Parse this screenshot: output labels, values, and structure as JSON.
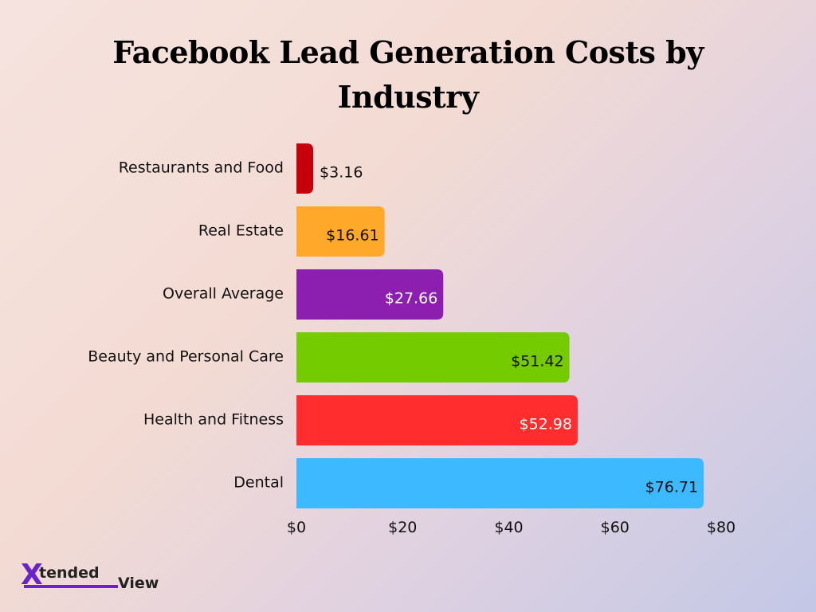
{
  "colors": {
    "Restaurants and Food": "#c6000b",
    "Real Estate": "#ffa82a",
    "Overall Average": "#8c1fb0",
    "Beauty and Personal Care": "#74cc00",
    "Health and Fitness": "#ff2d2d",
    "Dental": "#3db9ff"
  },
  "chart_data": {
    "type": "bar",
    "orientation": "horizontal",
    "title": "Facebook Lead Generation Costs by Industry",
    "categories": [
      "Restaurants and Food",
      "Real Estate",
      "Overall Average",
      "Beauty and Personal Care",
      "Health and Fitness",
      "Dental"
    ],
    "values": [
      3.16,
      16.61,
      27.66,
      51.42,
      52.98,
      76.71
    ],
    "value_labels": [
      "$3.16",
      "$16.61",
      "$27.66",
      "$51.42",
      "$52.98",
      "$76.71"
    ],
    "xlim": [
      0,
      80
    ],
    "xticks": [
      0,
      20,
      40,
      60,
      80
    ],
    "xtick_labels": [
      "$0",
      "$20",
      "$40",
      "$60",
      "$80"
    ],
    "xlabel": "",
    "ylabel": "",
    "grid": false,
    "legend": "none"
  },
  "logo": {
    "prefix": "X",
    "middle": "tended",
    "suffix": "View"
  }
}
